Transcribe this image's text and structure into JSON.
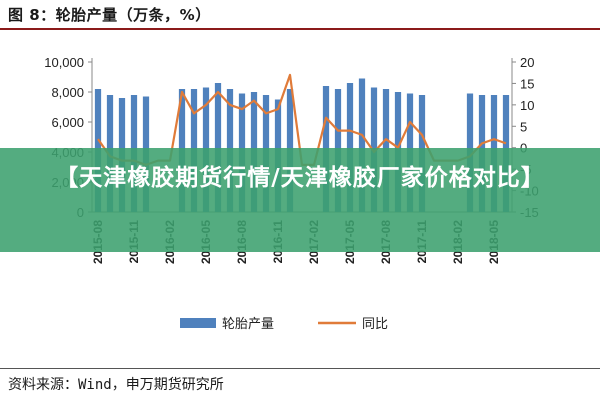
{
  "figure": {
    "title": "图 8：轮胎产量（万条，%）",
    "source_prefix": "资料来源：",
    "source_en": "Wind",
    "source_suffix": "，申万期货研究所"
  },
  "banner": {
    "text": "【天津橡胶期货行情/天津橡胶厂家价格对比】"
  },
  "chart_data": {
    "type": "bar",
    "categories": [
      "2015-08",
      "2015-09",
      "2015-10",
      "2015-11",
      "2015-12",
      "2016-01",
      "2016-02",
      "2016-03",
      "2016-04",
      "2016-05",
      "2016-06",
      "2016-07",
      "2016-08",
      "2016-09",
      "2016-10",
      "2016-11",
      "2016-12",
      "2017-01",
      "2017-02",
      "2017-03",
      "2017-04",
      "2017-05",
      "2017-06",
      "2017-07",
      "2017-08",
      "2017-09",
      "2017-10",
      "2017-11",
      "2017-12",
      "2018-01",
      "2018-02",
      "2018-03",
      "2018-04",
      "2018-05",
      "2018-06"
    ],
    "x_tick_labels": [
      "2015-08",
      "2015-11",
      "2016-02",
      "2016-05",
      "2016-08",
      "2016-11",
      "2017-02",
      "2017-05",
      "2017-08",
      "2017-11",
      "2018-02",
      "2018-05"
    ],
    "series": [
      {
        "name": "轮胎产量",
        "axis": "left",
        "type": "bar",
        "values": [
          8200,
          7800,
          7600,
          7800,
          7700,
          null,
          null,
          8200,
          8200,
          8300,
          8600,
          8200,
          7900,
          8000,
          7800,
          7500,
          8200,
          null,
          null,
          8400,
          8200,
          8600,
          8900,
          8300,
          8200,
          8000,
          7900,
          7800,
          null,
          null,
          null,
          7900,
          7800,
          7800,
          7800
        ]
      },
      {
        "name": "同比",
        "axis": "right",
        "type": "line",
        "values": [
          2,
          -2,
          -3,
          -3,
          -4,
          -3,
          -3,
          13,
          8,
          10,
          13,
          10,
          9,
          11,
          8,
          9,
          17,
          -4,
          -4,
          7,
          4,
          4,
          3,
          -1,
          2,
          0,
          6,
          3,
          -3,
          -3,
          -3,
          -2,
          1,
          2,
          1
        ]
      }
    ],
    "left_axis": {
      "min": 0,
      "max": 10000,
      "ticks": [
        "0",
        "2,000",
        "4,000",
        "6,000",
        "8,000",
        "10,000"
      ]
    },
    "right_axis": {
      "min": -15,
      "max": 20,
      "ticks": [
        "-15",
        "-10",
        "-5",
        "0",
        "5",
        "10",
        "15",
        "20"
      ]
    },
    "colors": {
      "bar": "#4f81bd",
      "line": "#e07b39"
    },
    "legend_position": "bottom",
    "grid": false
  }
}
